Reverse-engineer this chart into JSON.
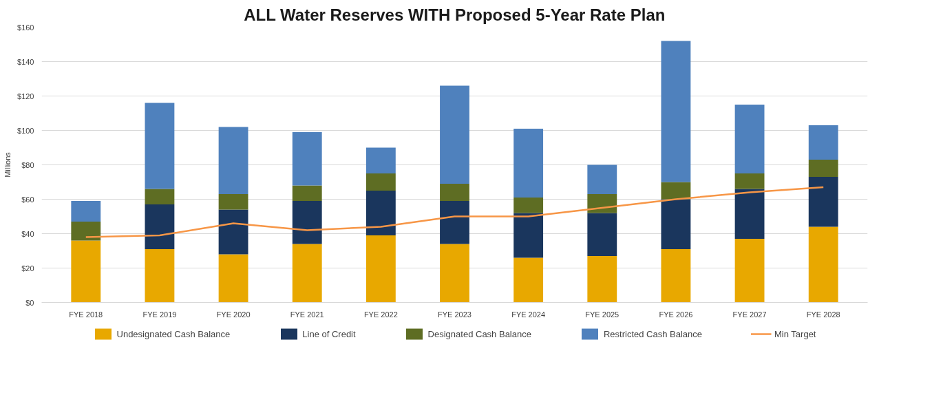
{
  "chart_data": {
    "type": "bar",
    "title": "ALL Water Reserves WITH Proposed 5-Year Rate Plan",
    "ylabel": "Millions",
    "categories": [
      "FYE 2018",
      "FYE 2019",
      "FYE 2020",
      "FYE 2021",
      "FYE 2022",
      "FYE 2023",
      "FYE 2024",
      "FYE 2025",
      "FYE 2026",
      "FYE 2027",
      "FYE 2028"
    ],
    "stacked": true,
    "series": [
      {
        "name": "Undesignated Cash Balance",
        "color": "#e8a800",
        "values": [
          36,
          31,
          28,
          34,
          39,
          34,
          26,
          27,
          31,
          37,
          44
        ]
      },
      {
        "name": "Line of Credit",
        "color": "#1a365d",
        "values": [
          0,
          26,
          26,
          25,
          26,
          25,
          26,
          25,
          29,
          29,
          29
        ]
      },
      {
        "name": "Designated Cash Balance",
        "color": "#5e6d23",
        "values": [
          11,
          9,
          9,
          9,
          10,
          10,
          9,
          11,
          10,
          9,
          10
        ]
      },
      {
        "name": "Restricted Cash Balance",
        "color": "#4f81bd",
        "values": [
          12,
          50,
          39,
          31,
          15,
          57,
          40,
          17,
          82,
          40,
          20
        ]
      },
      {
        "name": "Min Target",
        "type": "line",
        "color": "#f79646",
        "values": [
          38,
          39,
          46,
          42,
          44,
          50,
          50,
          55,
          60,
          64,
          67
        ]
      }
    ],
    "ylim": [
      0,
      160
    ],
    "yticks": [
      {
        "value": 0,
        "label": "$0"
      },
      {
        "value": 20,
        "label": "$20"
      },
      {
        "value": 40,
        "label": "$40"
      },
      {
        "value": 60,
        "label": "$60"
      },
      {
        "value": 80,
        "label": "$80"
      },
      {
        "value": 100,
        "label": "$100"
      },
      {
        "value": 120,
        "label": "$120"
      },
      {
        "value": 140,
        "label": "$140"
      },
      {
        "value": 160,
        "label": "$160"
      }
    ],
    "grid": "y",
    "legend": "bottom",
    "marker": "none",
    "line_style": "solid"
  }
}
